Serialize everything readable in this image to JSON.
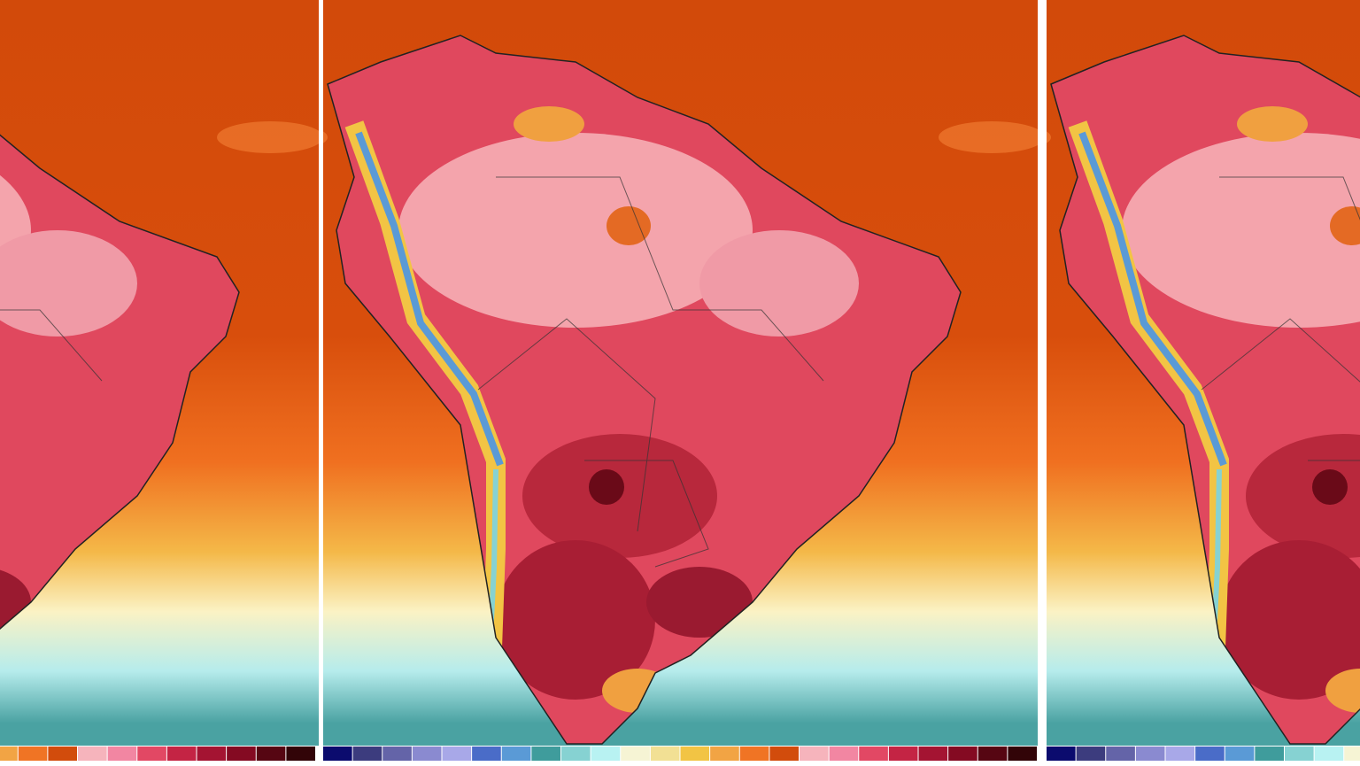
{
  "colorbar": {
    "colors": [
      "#0b0b6e",
      "#3c3c7e",
      "#6464a8",
      "#8a8ad0",
      "#a8a8e8",
      "#4a6cc8",
      "#5a9ad6",
      "#3f9c9c",
      "#86d2d2",
      "#b8f2f2",
      "#f6f4d4",
      "#f2e094",
      "#f2c444",
      "#f2a444",
      "#f07424",
      "#d24c0c",
      "#f6b4bc",
      "#f286a2",
      "#e24864",
      "#c42444",
      "#a41432",
      "#840a22",
      "#560612",
      "#320408"
    ]
  }
}
